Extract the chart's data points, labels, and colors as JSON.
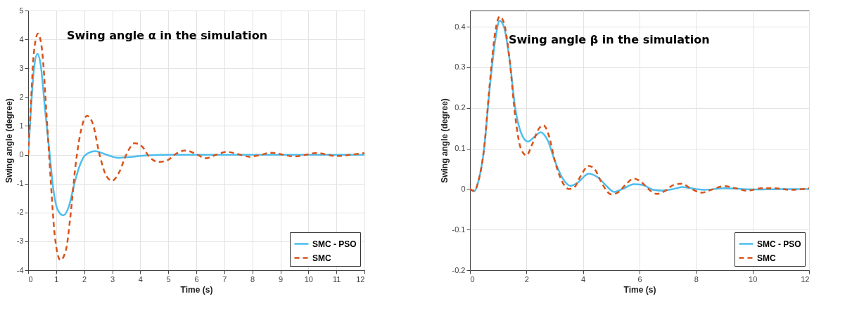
{
  "chart_data": [
    {
      "type": "line",
      "title": "Swing angle α in the simulation",
      "xlabel": "Time (s)",
      "ylabel": "Swing angle (degree)",
      "xlim": [
        0,
        12
      ],
      "xticks": [
        0,
        1,
        2,
        3,
        4,
        5,
        6,
        7,
        8,
        9,
        10,
        11,
        12
      ],
      "ylim": [
        -4,
        5
      ],
      "yticks": [
        -4,
        -3,
        -2,
        -1,
        0,
        1,
        2,
        3,
        4,
        5
      ],
      "grid": true,
      "legend": "bottom right",
      "series": [
        {
          "name": "SMC - PSO",
          "color": "#4dbeee",
          "line_style": "solid",
          "x": [
            0,
            0.1,
            0.2,
            0.33,
            0.45,
            0.6,
            0.75,
            0.9,
            1.05,
            1.25,
            1.45,
            1.65,
            1.85,
            2.05,
            2.4,
            2.8,
            3.2,
            3.6,
            4.2,
            5,
            6,
            8,
            10,
            12
          ],
          "values": [
            0,
            1.6,
            2.9,
            3.5,
            3.1,
            1.6,
            0.2,
            -1.2,
            -1.9,
            -2.1,
            -1.8,
            -1.0,
            -0.35,
            0,
            0.12,
            0,
            -0.1,
            -0.08,
            -0.02,
            0,
            0,
            0,
            0,
            0
          ]
        },
        {
          "name": "SMC",
          "color": "#d95319",
          "line_style": "dashed",
          "x": [
            0,
            0.1,
            0.2,
            0.35,
            0.5,
            0.65,
            0.8,
            0.95,
            1.15,
            1.35,
            1.5,
            1.7,
            1.9,
            2.1,
            2.3,
            2.55,
            2.8,
            3.0,
            3.25,
            3.5,
            3.8,
            4.05,
            4.35,
            4.65,
            4.95,
            5.3,
            5.6,
            5.95,
            6.35,
            6.7,
            7.1,
            7.5,
            7.9,
            8.3,
            8.7,
            9.1,
            9.5,
            9.9,
            10.3,
            10.7,
            11.0,
            11.5,
            12
          ],
          "values": [
            0,
            1.8,
            3.5,
            4.2,
            3.6,
            1.5,
            -0.8,
            -2.8,
            -3.65,
            -3.3,
            -2.2,
            -0.3,
            0.9,
            1.35,
            1.1,
            0,
            -0.75,
            -0.9,
            -0.6,
            0,
            0.4,
            0.3,
            -0.1,
            -0.25,
            -0.2,
            0.05,
            0.15,
            0.05,
            -0.12,
            0,
            0.1,
            0.02,
            -0.07,
            0,
            0.07,
            0,
            -0.06,
            0,
            0.06,
            0,
            -0.05,
            0,
            0.06
          ]
        }
      ]
    },
    {
      "type": "line",
      "title": "Swing angle β in the simulation",
      "xlabel": "Time (s)",
      "ylabel": "Swing angle (degree)",
      "xlim": [
        0,
        12
      ],
      "xticks": [
        0,
        2,
        4,
        6,
        8,
        10,
        12
      ],
      "ylim": [
        -0.2,
        0.44
      ],
      "yticks": [
        -0.2,
        -0.1,
        0,
        0.1,
        0.2,
        0.3,
        0.4
      ],
      "grid": true,
      "legend": "bottom right",
      "series": [
        {
          "name": "SMC - PSO",
          "color": "#4dbeee",
          "line_style": "solid",
          "x": [
            0,
            0.15,
            0.3,
            0.5,
            0.7,
            0.9,
            1.05,
            1.2,
            1.4,
            1.6,
            1.8,
            2.05,
            2.3,
            2.5,
            2.75,
            3.0,
            3.25,
            3.55,
            3.8,
            4.2,
            4.5,
            4.8,
            5.1,
            5.4,
            5.8,
            6.1,
            6.5,
            6.8,
            7.2,
            7.5,
            8.0,
            8.3,
            9.0,
            10,
            11,
            12
          ],
          "values": [
            0,
            -0.005,
            0.02,
            0.1,
            0.25,
            0.37,
            0.415,
            0.4,
            0.32,
            0.2,
            0.14,
            0.117,
            0.13,
            0.14,
            0.12,
            0.07,
            0.03,
            0.008,
            0.015,
            0.038,
            0.03,
            0.01,
            -0.007,
            0,
            0.012,
            0.01,
            -0.002,
            -0.004,
            0,
            0.005,
            0,
            -0.002,
            0.002,
            -0.001,
            0,
            0
          ]
        },
        {
          "name": "SMC",
          "color": "#d95319",
          "line_style": "dashed",
          "x": [
            0,
            0.15,
            0.3,
            0.5,
            0.7,
            0.9,
            1.05,
            1.2,
            1.4,
            1.6,
            1.8,
            2.0,
            2.2,
            2.45,
            2.6,
            2.8,
            3.0,
            3.25,
            3.5,
            3.7,
            3.9,
            4.2,
            4.4,
            4.7,
            5.0,
            5.2,
            5.5,
            5.8,
            6.1,
            6.4,
            6.6,
            6.9,
            7.2,
            7.5,
            7.8,
            8.2,
            8.5,
            9.0,
            9.4,
            9.8,
            10.3,
            10.8,
            11.3,
            12
          ],
          "values": [
            0,
            -0.005,
            0.02,
            0.1,
            0.26,
            0.39,
            0.425,
            0.41,
            0.32,
            0.18,
            0.1,
            0.083,
            0.11,
            0.15,
            0.157,
            0.13,
            0.07,
            0.02,
            0,
            0.005,
            0.03,
            0.057,
            0.05,
            0.01,
            -0.013,
            -0.01,
            0.01,
            0.026,
            0.015,
            -0.005,
            -0.012,
            -0.005,
            0.01,
            0.013,
            0.002,
            -0.009,
            -0.003,
            0.007,
            0.002,
            -0.004,
            0.002,
            0.002,
            -0.002,
            0.002
          ]
        }
      ]
    }
  ]
}
